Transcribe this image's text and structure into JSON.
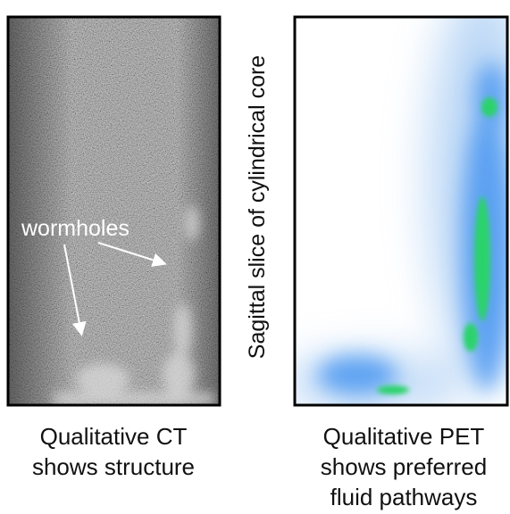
{
  "annotation": "wormholes",
  "axis_label": "Sagittal slice of cylindrical core",
  "captions": {
    "ct": [
      "Qualitative CT",
      "shows structure"
    ],
    "pet": [
      "Qualitative PET",
      "shows preferred",
      "fluid pathways"
    ]
  }
}
